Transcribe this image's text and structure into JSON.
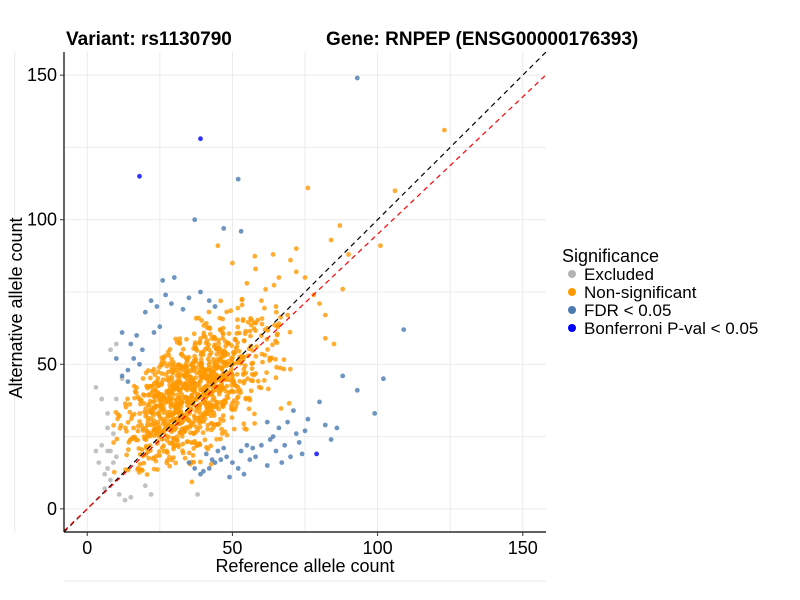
{
  "chart_data": {
    "type": "scatter",
    "title_left": "Variant: rs1130790",
    "title_right": "Gene: RNPEP (ENSG00000176393)",
    "xlabel": "Reference allele count",
    "ylabel": "Alternative allele count",
    "xlim": [
      -8,
      158
    ],
    "ylim": [
      -8,
      158
    ],
    "xticks": [
      0,
      50,
      100,
      150
    ],
    "yticks": [
      0,
      50,
      100,
      150
    ],
    "grid": true,
    "reference_lines": [
      {
        "name": "identity",
        "slope": 1.0,
        "color": "#000000",
        "style": "dashed"
      },
      {
        "name": "fit",
        "slope": 0.95,
        "color": "#ff0000",
        "style": "dashed"
      }
    ],
    "legend": {
      "title": "Significance",
      "position": "right",
      "entries": [
        {
          "label": "Excluded",
          "color": "#b3b3b3"
        },
        {
          "label": "Non-significant",
          "color": "#ff9900"
        },
        {
          "label": "FDR < 0.05",
          "color": "#4a7ab0"
        },
        {
          "label": "Bonferroni P-val < 0.05",
          "color": "#0000ff"
        }
      ]
    },
    "series": [
      {
        "name": "Excluded",
        "color": "#b3b3b3",
        "points": [
          [
            3,
            42
          ],
          [
            5,
            38
          ],
          [
            3,
            20
          ],
          [
            7,
            33
          ],
          [
            8,
            55
          ],
          [
            10,
            57
          ],
          [
            5,
            22
          ],
          [
            7,
            14
          ],
          [
            7,
            20
          ],
          [
            9,
            16
          ],
          [
            10,
            18
          ],
          [
            6,
            12
          ],
          [
            8,
            10
          ],
          [
            11,
            5
          ],
          [
            13,
            3
          ],
          [
            15,
            4
          ],
          [
            20,
            8
          ],
          [
            22,
            5
          ],
          [
            38,
            5
          ],
          [
            9,
            26
          ],
          [
            7,
            28
          ],
          [
            10,
            38
          ],
          [
            12,
            45
          ],
          [
            4,
            16
          ],
          [
            6,
            7
          ],
          [
            8,
            20
          ]
        ]
      },
      {
        "name": "Non-significant",
        "color": "#ff9900",
        "generated": {
          "count": 1100,
          "x_mean": 36,
          "x_sd": 13,
          "y_mean": 40,
          "y_sd": 13,
          "x_range": [
            9,
            88
          ],
          "y_range": [
            9,
            98
          ],
          "seed": 7
        },
        "points": [
          [
            123,
            131
          ],
          [
            106,
            110
          ],
          [
            76,
            111
          ],
          [
            87,
            98
          ],
          [
            84,
            93
          ],
          [
            90,
            88
          ],
          [
            101,
            91
          ],
          [
            72,
            90
          ],
          [
            70,
            86
          ],
          [
            88,
            76
          ],
          [
            80,
            71
          ],
          [
            82,
            67
          ],
          [
            82,
            59
          ],
          [
            85,
            57
          ],
          [
            69,
            67
          ],
          [
            65,
            70
          ],
          [
            60,
            72
          ],
          [
            55,
            78
          ],
          [
            45,
            91
          ],
          [
            50,
            85
          ],
          [
            64,
            88
          ],
          [
            78,
            74
          ],
          [
            72,
            82
          ],
          [
            75,
            80
          ],
          [
            66,
            80
          ],
          [
            58,
            83
          ]
        ]
      },
      {
        "name": "FDR < 0.05",
        "color": "#4a7ab0",
        "points": [
          [
            93,
            149
          ],
          [
            52,
            114
          ],
          [
            37,
            100
          ],
          [
            47,
            97
          ],
          [
            53,
            96
          ],
          [
            30,
            80
          ],
          [
            26,
            79
          ],
          [
            22,
            72
          ],
          [
            24,
            70
          ],
          [
            20,
            68
          ],
          [
            17,
            60
          ],
          [
            15,
            57
          ],
          [
            12,
            61
          ],
          [
            16,
            52
          ],
          [
            18,
            50
          ],
          [
            14,
            48
          ],
          [
            10,
            52
          ],
          [
            12,
            46
          ],
          [
            14,
            44
          ],
          [
            19,
            55
          ],
          [
            27,
            74
          ],
          [
            25,
            63
          ],
          [
            23,
            61
          ],
          [
            29,
            71
          ],
          [
            35,
            73
          ],
          [
            39,
            75
          ],
          [
            42,
            72
          ],
          [
            44,
            70
          ],
          [
            33,
            69
          ],
          [
            109,
            62
          ],
          [
            102,
            45
          ],
          [
            99,
            33
          ],
          [
            88,
            46
          ],
          [
            93,
            41
          ],
          [
            80,
            37
          ],
          [
            76,
            31
          ],
          [
            82,
            29
          ],
          [
            73,
            23
          ],
          [
            67,
            16
          ],
          [
            70,
            18
          ],
          [
            65,
            20
          ],
          [
            62,
            15
          ],
          [
            58,
            18
          ],
          [
            56,
            17
          ],
          [
            52,
            14
          ],
          [
            50,
            16
          ],
          [
            48,
            18
          ],
          [
            46,
            17
          ],
          [
            44,
            16
          ],
          [
            42,
            14
          ],
          [
            40,
            13
          ],
          [
            37,
            14
          ],
          [
            35,
            16
          ],
          [
            54,
            12
          ],
          [
            60,
            22
          ],
          [
            64,
            25
          ],
          [
            66,
            28
          ],
          [
            69,
            30
          ],
          [
            72,
            26
          ],
          [
            75,
            27
          ],
          [
            71,
            34
          ],
          [
            63,
            24
          ],
          [
            57,
            21
          ],
          [
            55,
            22
          ],
          [
            53,
            20
          ],
          [
            47,
            21
          ],
          [
            45,
            20
          ],
          [
            41,
            19
          ],
          [
            43,
            17
          ],
          [
            39,
            12
          ],
          [
            49,
            11
          ],
          [
            62,
            30
          ],
          [
            68,
            22
          ],
          [
            74,
            19
          ],
          [
            84,
            24
          ],
          [
            86,
            28
          ]
        ]
      },
      {
        "name": "Bonferroni P-val < 0.05",
        "color": "#0000ff",
        "points": [
          [
            39,
            128
          ],
          [
            18,
            115
          ],
          [
            79,
            19
          ]
        ]
      }
    ]
  }
}
